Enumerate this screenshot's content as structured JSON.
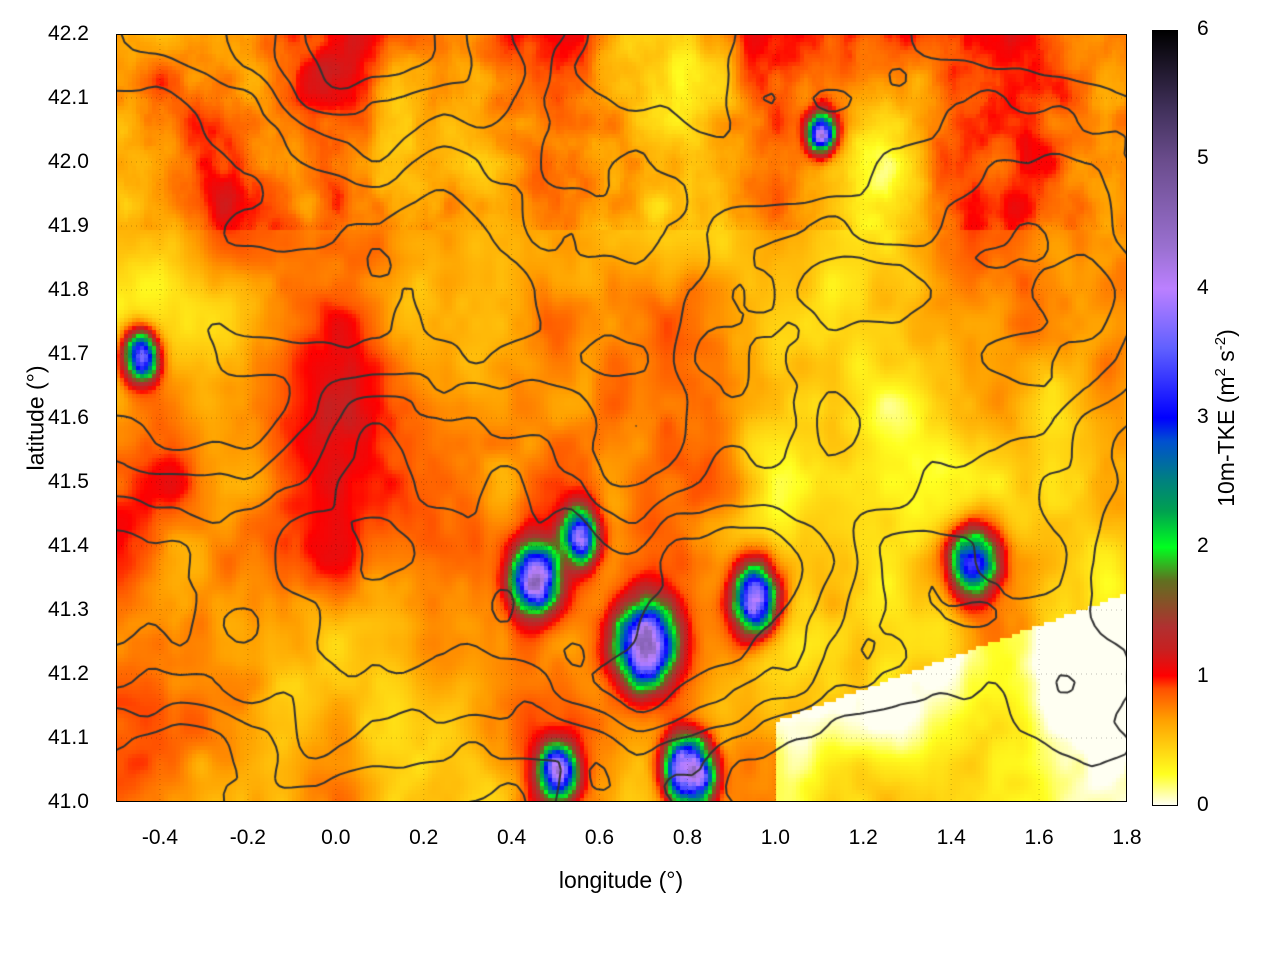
{
  "chart_data": {
    "type": "heatmap",
    "xlabel": "longitude (°)",
    "ylabel": "latitude (°)",
    "colorbar_label": {
      "main": "10m-TKE (m",
      "sup1": "2",
      "mid": " s",
      "sup2": "-2",
      "end": ")"
    },
    "xlim": [
      -0.5,
      1.8
    ],
    "ylim": [
      41.0,
      42.2
    ],
    "zlim": [
      0,
      6
    ],
    "xticks": [
      "-0.4",
      "-0.2",
      "0.0",
      "0.2",
      "0.4",
      "0.6",
      "0.8",
      "1.0",
      "1.2",
      "1.4",
      "1.6",
      "1.8"
    ],
    "yticks": [
      "41.0",
      "41.1",
      "41.2",
      "41.3",
      "41.4",
      "41.5",
      "41.6",
      "41.7",
      "41.8",
      "41.9",
      "42.0",
      "42.1",
      "42.2"
    ],
    "cbticks": [
      "0",
      "1",
      "2",
      "3",
      "4",
      "5",
      "6"
    ],
    "grid": true,
    "contours": true,
    "contour_color": "#333333",
    "palette": [
      "#fffff2",
      "#ffff20",
      "#ffa000",
      "#ff0000",
      "#b03030",
      "#00ff20",
      "#008080",
      "#0000ff",
      "#bb80ff",
      "#6a4c8c",
      "#000000"
    ]
  }
}
